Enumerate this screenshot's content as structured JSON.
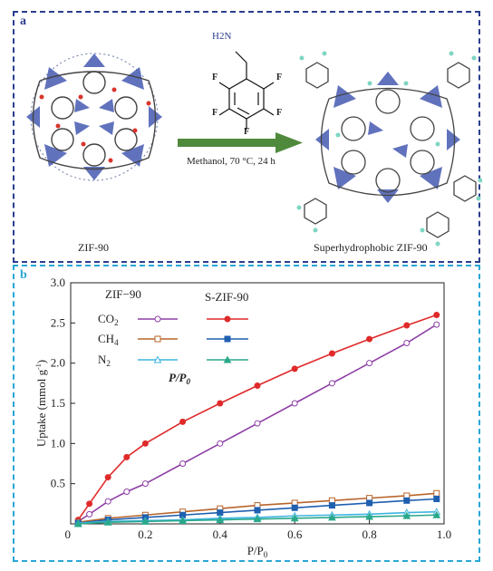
{
  "panel_a": {
    "label": "a",
    "left_caption": "ZIF-90",
    "right_caption": "Superhydrophobic ZIF-90",
    "reagent_amine": "H2N",
    "fluorine": "F",
    "conditions": "Methanol, 70 °C, 24 h"
  },
  "panel_b": {
    "label": "b",
    "legend_title_left": "ZIF−90",
    "legend_title_right": "S-ZIF-90",
    "legend_overlay": "P/P0",
    "colors": {
      "co2_zif": "#8e3fa6",
      "co2_s": "#e02a2a",
      "ch4_zif": "#b8652b",
      "ch4_s": "#1f5fb0",
      "n2_zif": "#3fb5e0",
      "n2_s": "#2aa88a"
    }
  },
  "chart_data": {
    "type": "line",
    "xlabel": "P/P0",
    "ylabel": "Uptake (mmol g-1)",
    "xlim": [
      0,
      1.0
    ],
    "ylim": [
      0,
      3.0
    ],
    "xticks": [
      "0",
      "0.2",
      "0.4",
      "0.6",
      "0.8",
      "1.0"
    ],
    "yticks": [
      "0.5",
      "1.0",
      "1.5",
      "2.0",
      "2.5",
      "3.0"
    ],
    "series": [
      {
        "name": "CO2",
        "group": "ZIF−90",
        "marker": "open-circle",
        "color": "#8e3fa6",
        "x": [
          0.02,
          0.05,
          0.1,
          0.15,
          0.2,
          0.3,
          0.4,
          0.5,
          0.6,
          0.7,
          0.8,
          0.9,
          0.98
        ],
        "y": [
          0.03,
          0.12,
          0.28,
          0.4,
          0.5,
          0.75,
          1.0,
          1.25,
          1.5,
          1.75,
          2.0,
          2.25,
          2.48
        ]
      },
      {
        "name": "CO2",
        "group": "S-ZIF-90",
        "marker": "filled-circle",
        "color": "#e02a2a",
        "x": [
          0.02,
          0.05,
          0.1,
          0.15,
          0.2,
          0.3,
          0.4,
          0.5,
          0.6,
          0.7,
          0.8,
          0.9,
          0.98
        ],
        "y": [
          0.05,
          0.25,
          0.58,
          0.83,
          1.0,
          1.27,
          1.5,
          1.72,
          1.93,
          2.12,
          2.3,
          2.47,
          2.6
        ]
      },
      {
        "name": "CH4",
        "group": "ZIF−90",
        "marker": "open-square",
        "color": "#b8652b",
        "x": [
          0.02,
          0.1,
          0.2,
          0.3,
          0.4,
          0.5,
          0.6,
          0.7,
          0.8,
          0.9,
          0.98
        ],
        "y": [
          0.02,
          0.07,
          0.11,
          0.15,
          0.19,
          0.23,
          0.26,
          0.29,
          0.32,
          0.35,
          0.38
        ]
      },
      {
        "name": "CH4",
        "group": "S-ZIF-90",
        "marker": "filled-square",
        "color": "#1f5fb0",
        "x": [
          0.02,
          0.1,
          0.2,
          0.3,
          0.4,
          0.5,
          0.6,
          0.7,
          0.8,
          0.9,
          0.98
        ],
        "y": [
          0.01,
          0.05,
          0.08,
          0.11,
          0.14,
          0.17,
          0.2,
          0.23,
          0.26,
          0.29,
          0.31
        ]
      },
      {
        "name": "N2",
        "group": "ZIF−90",
        "marker": "open-triangle",
        "color": "#3fb5e0",
        "x": [
          0.02,
          0.1,
          0.2,
          0.3,
          0.4,
          0.5,
          0.6,
          0.7,
          0.8,
          0.9,
          0.98
        ],
        "y": [
          0.01,
          0.03,
          0.04,
          0.05,
          0.07,
          0.08,
          0.1,
          0.11,
          0.12,
          0.14,
          0.15
        ]
      },
      {
        "name": "N2",
        "group": "S-ZIF-90",
        "marker": "filled-triangle",
        "color": "#2aa88a",
        "x": [
          0.02,
          0.1,
          0.2,
          0.3,
          0.4,
          0.5,
          0.6,
          0.7,
          0.8,
          0.9,
          0.98
        ],
        "y": [
          0.0,
          0.02,
          0.03,
          0.04,
          0.05,
          0.06,
          0.07,
          0.08,
          0.09,
          0.1,
          0.11
        ]
      }
    ]
  }
}
